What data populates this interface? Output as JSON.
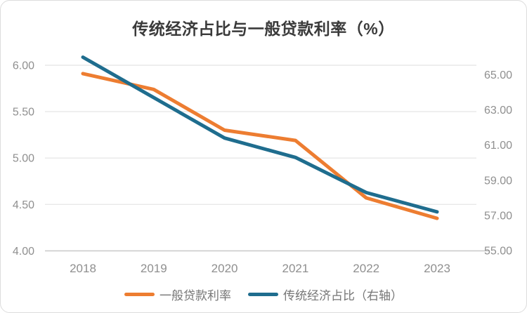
{
  "chart_data": {
    "type": "line",
    "title": "传统经济占比与一般贷款利率（%）",
    "categories": [
      "2018",
      "2019",
      "2020",
      "2021",
      "2022",
      "2023"
    ],
    "series": [
      {
        "name": "一般贷款利率",
        "axis": "left",
        "color": "#ED7D31",
        "values": [
          5.91,
          5.74,
          5.3,
          5.19,
          4.57,
          4.35
        ]
      },
      {
        "name": "传统经济占比（右轴）",
        "axis": "right",
        "color": "#1F6D8E",
        "values": [
          66.0,
          63.7,
          61.4,
          60.3,
          58.3,
          57.2
        ]
      }
    ],
    "y_axis_left": {
      "tick_labels": [
        "6.00",
        "5.50",
        "5.00",
        "4.50",
        "4.00"
      ],
      "range": [
        4.0,
        6.0
      ]
    },
    "y_axis_right": {
      "tick_labels": [
        "65.00",
        "63.00",
        "61.00",
        "59.00",
        "57.00",
        "55.00"
      ],
      "range": [
        55.0,
        66.0
      ]
    },
    "x_axis": {
      "tick_labels": [
        "2018",
        "2019",
        "2020",
        "2021",
        "2022",
        "2023"
      ]
    },
    "legend_position": "bottom",
    "grid": true
  },
  "colors": {
    "series_loan_rate": "#ED7D31",
    "series_economy_share": "#1F6D8E",
    "gridline": "#e8e8e8",
    "axis_line": "#cccccc",
    "tick_text": "#8f8f8f",
    "title_text": "#3a3a3a",
    "legend_text": "#757575",
    "card_border": "#dcdcdc"
  }
}
